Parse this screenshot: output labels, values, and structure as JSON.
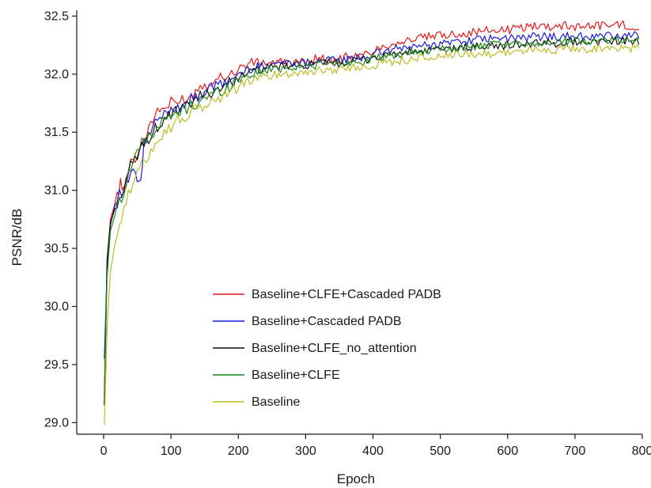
{
  "chart_data": {
    "type": "line",
    "title": "",
    "xlabel": "Epoch",
    "ylabel": "PSNR/dB",
    "xlim": [
      -40,
      800
    ],
    "ylim": [
      28.9,
      32.55
    ],
    "x_ticks": [
      0,
      100,
      200,
      300,
      400,
      500,
      600,
      700,
      800
    ],
    "y_ticks": [
      29.0,
      29.5,
      30.0,
      30.5,
      31.0,
      31.5,
      32.0,
      32.5
    ],
    "y_tick_labels": [
      "29.0",
      "29.5",
      "30.0",
      "30.5",
      "31.0",
      "31.5",
      "32.0",
      "32.5"
    ],
    "grid": false,
    "legend_position": "center",
    "series": [
      {
        "name": "Baseline+CLFE+Cascaded PADB",
        "color": "#e41a1c",
        "points": [
          [
            1,
            29.15
          ],
          [
            5,
            30.35
          ],
          [
            10,
            30.75
          ],
          [
            20,
            30.95
          ],
          [
            25,
            31.05
          ],
          [
            30,
            31.0
          ],
          [
            40,
            31.25
          ],
          [
            50,
            31.3
          ],
          [
            60,
            31.45
          ],
          [
            70,
            31.55
          ],
          [
            80,
            31.7
          ],
          [
            90,
            31.7
          ],
          [
            100,
            31.75
          ],
          [
            110,
            31.75
          ],
          [
            120,
            31.8
          ],
          [
            130,
            31.8
          ],
          [
            140,
            31.9
          ],
          [
            150,
            31.9
          ],
          [
            160,
            31.95
          ],
          [
            170,
            31.95
          ],
          [
            180,
            32.0
          ],
          [
            190,
            32.0
          ],
          [
            200,
            32.05
          ],
          [
            220,
            32.1
          ],
          [
            240,
            32.1
          ],
          [
            260,
            32.1
          ],
          [
            280,
            32.1
          ],
          [
            300,
            32.1
          ],
          [
            320,
            32.15
          ],
          [
            340,
            32.1
          ],
          [
            360,
            32.15
          ],
          [
            380,
            32.15
          ],
          [
            400,
            32.2
          ],
          [
            420,
            32.25
          ],
          [
            440,
            32.28
          ],
          [
            460,
            32.3
          ],
          [
            480,
            32.32
          ],
          [
            500,
            32.33
          ],
          [
            520,
            32.35
          ],
          [
            540,
            32.35
          ],
          [
            560,
            32.37
          ],
          [
            580,
            32.38
          ],
          [
            600,
            32.38
          ],
          [
            620,
            32.4
          ],
          [
            640,
            32.42
          ],
          [
            660,
            32.41
          ],
          [
            680,
            32.42
          ],
          [
            700,
            32.41
          ],
          [
            720,
            32.42
          ],
          [
            740,
            32.42
          ],
          [
            760,
            32.43
          ],
          [
            780,
            32.42
          ],
          [
            795,
            32.4
          ]
        ]
      },
      {
        "name": "Baseline+Cascaded PADB",
        "color": "#1a1adb",
        "points": [
          [
            1,
            29.55
          ],
          [
            5,
            30.3
          ],
          [
            10,
            30.7
          ],
          [
            20,
            30.95
          ],
          [
            30,
            31.0
          ],
          [
            40,
            31.15
          ],
          [
            50,
            31.1
          ],
          [
            55,
            31.05
          ],
          [
            60,
            31.4
          ],
          [
            70,
            31.5
          ],
          [
            80,
            31.6
          ],
          [
            90,
            31.65
          ],
          [
            100,
            31.7
          ],
          [
            110,
            31.72
          ],
          [
            120,
            31.75
          ],
          [
            130,
            31.78
          ],
          [
            140,
            31.8
          ],
          [
            150,
            31.85
          ],
          [
            160,
            31.88
          ],
          [
            170,
            31.9
          ],
          [
            180,
            31.92
          ],
          [
            190,
            31.95
          ],
          [
            200,
            32.0
          ],
          [
            220,
            32.05
          ],
          [
            240,
            32.08
          ],
          [
            260,
            32.1
          ],
          [
            280,
            32.1
          ],
          [
            300,
            32.1
          ],
          [
            320,
            32.12
          ],
          [
            340,
            32.12
          ],
          [
            360,
            32.12
          ],
          [
            380,
            32.14
          ],
          [
            400,
            32.17
          ],
          [
            420,
            32.2
          ],
          [
            440,
            32.22
          ],
          [
            460,
            32.24
          ],
          [
            480,
            32.25
          ],
          [
            500,
            32.26
          ],
          [
            520,
            32.28
          ],
          [
            540,
            32.29
          ],
          [
            560,
            32.3
          ],
          [
            580,
            32.3
          ],
          [
            600,
            32.31
          ],
          [
            620,
            32.31
          ],
          [
            640,
            32.32
          ],
          [
            660,
            32.33
          ],
          [
            680,
            32.32
          ],
          [
            700,
            32.33
          ],
          [
            720,
            32.32
          ],
          [
            740,
            32.33
          ],
          [
            760,
            32.33
          ],
          [
            780,
            32.33
          ],
          [
            795,
            32.33
          ]
        ]
      },
      {
        "name": "Baseline+CLFE_no_attention",
        "color": "#111111",
        "points": [
          [
            1,
            29.15
          ],
          [
            5,
            30.4
          ],
          [
            10,
            30.72
          ],
          [
            20,
            30.9
          ],
          [
            30,
            31.0
          ],
          [
            40,
            31.2
          ],
          [
            50,
            31.3
          ],
          [
            60,
            31.4
          ],
          [
            70,
            31.48
          ],
          [
            80,
            31.55
          ],
          [
            90,
            31.6
          ],
          [
            100,
            31.65
          ],
          [
            110,
            31.68
          ],
          [
            120,
            31.7
          ],
          [
            130,
            31.75
          ],
          [
            140,
            31.8
          ],
          [
            150,
            31.82
          ],
          [
            160,
            31.85
          ],
          [
            170,
            31.88
          ],
          [
            180,
            31.9
          ],
          [
            190,
            31.93
          ],
          [
            200,
            31.98
          ],
          [
            220,
            32.02
          ],
          [
            240,
            32.05
          ],
          [
            260,
            32.06
          ],
          [
            280,
            32.07
          ],
          [
            300,
            32.08
          ],
          [
            320,
            32.09
          ],
          [
            340,
            32.1
          ],
          [
            360,
            32.1
          ],
          [
            380,
            32.12
          ],
          [
            400,
            32.14
          ],
          [
            420,
            32.16
          ],
          [
            440,
            32.18
          ],
          [
            460,
            32.19
          ],
          [
            480,
            32.2
          ],
          [
            500,
            32.21
          ],
          [
            520,
            32.22
          ],
          [
            540,
            32.23
          ],
          [
            560,
            32.24
          ],
          [
            580,
            32.24
          ],
          [
            600,
            32.25
          ],
          [
            620,
            32.26
          ],
          [
            640,
            32.26
          ],
          [
            660,
            32.27
          ],
          [
            680,
            32.27
          ],
          [
            700,
            32.28
          ],
          [
            720,
            32.28
          ],
          [
            740,
            32.28
          ],
          [
            760,
            32.29
          ],
          [
            780,
            32.29
          ],
          [
            795,
            32.28
          ]
        ]
      },
      {
        "name": "Baseline+CLFE",
        "color": "#1a8a1a",
        "points": [
          [
            1,
            29.28
          ],
          [
            5,
            30.25
          ],
          [
            10,
            30.65
          ],
          [
            20,
            30.85
          ],
          [
            30,
            31.0
          ],
          [
            40,
            31.2
          ],
          [
            50,
            31.35
          ],
          [
            60,
            31.42
          ],
          [
            70,
            31.48
          ],
          [
            80,
            31.55
          ],
          [
            90,
            31.6
          ],
          [
            100,
            31.63
          ],
          [
            110,
            31.66
          ],
          [
            120,
            31.7
          ],
          [
            130,
            31.72
          ],
          [
            140,
            31.76
          ],
          [
            150,
            31.8
          ],
          [
            160,
            31.82
          ],
          [
            170,
            31.85
          ],
          [
            180,
            31.88
          ],
          [
            190,
            31.9
          ],
          [
            200,
            31.96
          ],
          [
            220,
            32.0
          ],
          [
            240,
            32.03
          ],
          [
            260,
            32.05
          ],
          [
            280,
            32.06
          ],
          [
            300,
            32.07
          ],
          [
            320,
            32.08
          ],
          [
            340,
            32.09
          ],
          [
            360,
            32.1
          ],
          [
            380,
            32.11
          ],
          [
            400,
            32.13
          ],
          [
            420,
            32.15
          ],
          [
            440,
            32.17
          ],
          [
            460,
            32.19
          ],
          [
            480,
            32.2
          ],
          [
            500,
            32.21
          ],
          [
            520,
            32.22
          ],
          [
            540,
            32.23
          ],
          [
            560,
            32.24
          ],
          [
            580,
            32.25
          ],
          [
            600,
            32.25
          ],
          [
            620,
            32.26
          ],
          [
            640,
            32.27
          ],
          [
            660,
            32.27
          ],
          [
            680,
            32.28
          ],
          [
            700,
            32.28
          ],
          [
            720,
            32.29
          ],
          [
            740,
            32.29
          ],
          [
            760,
            32.3
          ],
          [
            780,
            32.3
          ],
          [
            795,
            32.3
          ]
        ]
      },
      {
        "name": "Baseline",
        "color": "#bcbd22",
        "points": [
          [
            1,
            28.98
          ],
          [
            5,
            29.8
          ],
          [
            10,
            30.3
          ],
          [
            20,
            30.65
          ],
          [
            30,
            30.85
          ],
          [
            40,
            31.0
          ],
          [
            50,
            31.15
          ],
          [
            60,
            31.25
          ],
          [
            70,
            31.35
          ],
          [
            80,
            31.45
          ],
          [
            90,
            31.5
          ],
          [
            100,
            31.55
          ],
          [
            110,
            31.6
          ],
          [
            120,
            31.63
          ],
          [
            130,
            31.66
          ],
          [
            140,
            31.7
          ],
          [
            150,
            31.73
          ],
          [
            160,
            31.76
          ],
          [
            170,
            31.79
          ],
          [
            180,
            31.82
          ],
          [
            190,
            31.85
          ],
          [
            200,
            31.9
          ],
          [
            220,
            31.95
          ],
          [
            240,
            31.98
          ],
          [
            260,
            32.0
          ],
          [
            280,
            32.01
          ],
          [
            300,
            32.02
          ],
          [
            320,
            32.03
          ],
          [
            340,
            32.04
          ],
          [
            360,
            32.05
          ],
          [
            380,
            32.06
          ],
          [
            400,
            32.08
          ],
          [
            420,
            32.1
          ],
          [
            440,
            32.12
          ],
          [
            460,
            32.13
          ],
          [
            480,
            32.14
          ],
          [
            500,
            32.15
          ],
          [
            520,
            32.16
          ],
          [
            540,
            32.17
          ],
          [
            560,
            32.18
          ],
          [
            580,
            32.18
          ],
          [
            600,
            32.19
          ],
          [
            620,
            32.2
          ],
          [
            640,
            32.2
          ],
          [
            660,
            32.21
          ],
          [
            680,
            32.21
          ],
          [
            700,
            32.22
          ],
          [
            720,
            32.22
          ],
          [
            740,
            32.22
          ],
          [
            760,
            32.22
          ],
          [
            780,
            32.22
          ],
          [
            795,
            32.22
          ]
        ]
      }
    ]
  }
}
